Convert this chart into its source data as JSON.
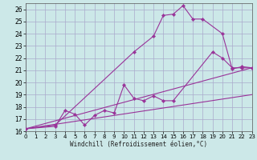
{
  "xlabel": "Windchill (Refroidissement éolien,°C)",
  "background_color": "#cce8e8",
  "grid_color": "#aaaacc",
  "line_color": "#993399",
  "xmin": 0,
  "xmax": 23,
  "ymin": 16,
  "ymax": 26.5,
  "yticks": [
    16,
    17,
    18,
    19,
    20,
    21,
    22,
    23,
    24,
    25,
    26
  ],
  "xticks": [
    0,
    1,
    2,
    3,
    4,
    5,
    6,
    7,
    8,
    9,
    10,
    11,
    12,
    13,
    14,
    15,
    16,
    17,
    18,
    19,
    20,
    21,
    22,
    23
  ],
  "series": [
    {
      "x": [
        0,
        3,
        11,
        13,
        14,
        15,
        16,
        17,
        18,
        20,
        21,
        22,
        23
      ],
      "y": [
        16.2,
        16.5,
        22.5,
        23.8,
        25.5,
        25.6,
        26.3,
        25.2,
        25.2,
        24.0,
        21.1,
        21.3,
        21.2
      ],
      "has_markers": true
    },
    {
      "x": [
        0,
        3,
        4,
        5,
        6,
        7,
        8,
        9,
        10,
        11,
        12,
        13,
        14,
        15,
        19,
        20,
        21,
        22,
        23
      ],
      "y": [
        16.2,
        16.4,
        17.7,
        17.4,
        16.5,
        17.3,
        17.7,
        17.5,
        19.8,
        18.7,
        18.5,
        18.9,
        18.5,
        18.5,
        22.5,
        22.0,
        21.2,
        21.2,
        21.2
      ],
      "has_markers": true
    },
    {
      "x": [
        0,
        23
      ],
      "y": [
        16.2,
        21.2
      ],
      "has_markers": false
    },
    {
      "x": [
        0,
        23
      ],
      "y": [
        16.2,
        19.0
      ],
      "has_markers": false
    }
  ]
}
